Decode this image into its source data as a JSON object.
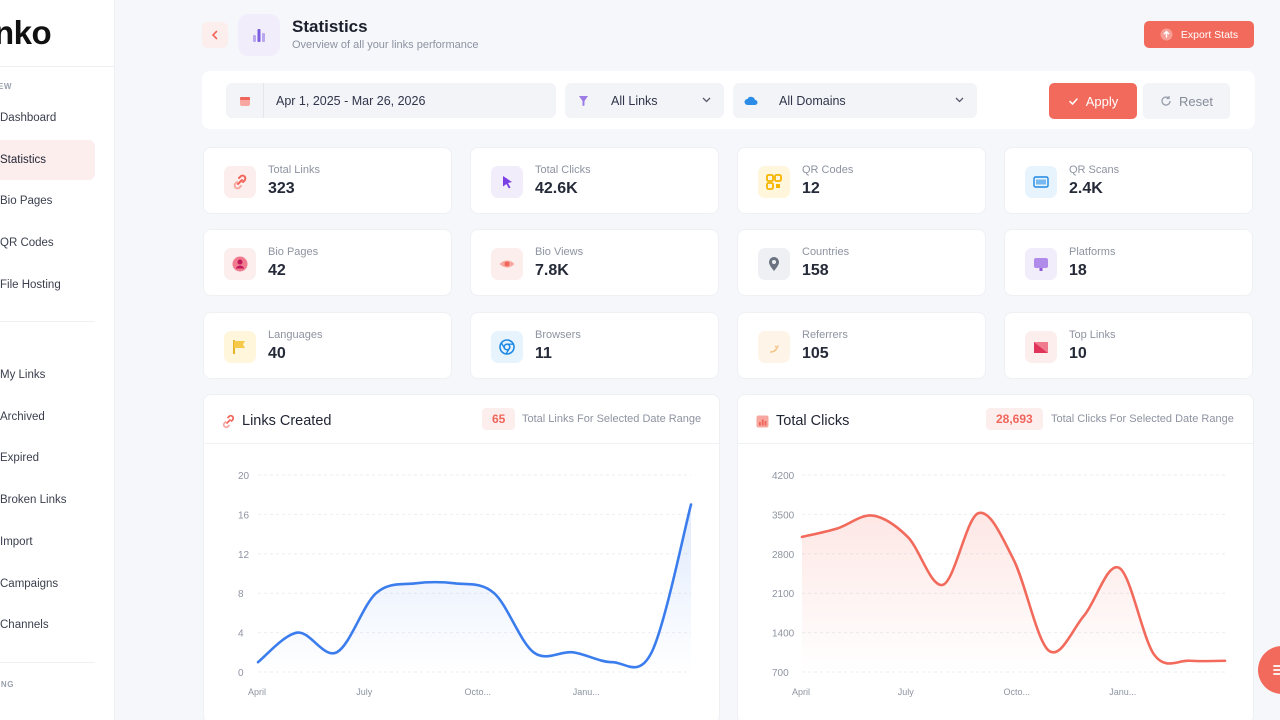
{
  "sidebar": {
    "logo": "nko",
    "section_top": "EW",
    "items_top": [
      {
        "label": "Dashboard"
      },
      {
        "label": "Statistics"
      },
      {
        "label": "Bio Pages"
      },
      {
        "label": "QR Codes"
      },
      {
        "label": "File Hosting"
      }
    ],
    "items_links": [
      {
        "label": "My Links"
      },
      {
        "label": "Archived"
      },
      {
        "label": "Expired"
      },
      {
        "label": "Broken Links"
      },
      {
        "label": "Import"
      },
      {
        "label": "Campaigns"
      },
      {
        "label": "Channels"
      }
    ],
    "section_bottom": "ING"
  },
  "header": {
    "title": "Statistics",
    "subtitle": "Overview of all your links performance",
    "export_label": "Export Stats"
  },
  "filters": {
    "date_range": "Apr 1, 2025 - Mar 26, 2026",
    "links_select": "All Links",
    "domains_select": "All Domains",
    "apply_label": "Apply",
    "reset_label": "Reset"
  },
  "stats": [
    {
      "label": "Total Links",
      "value": "323",
      "icon": "link-icon",
      "color": "#fdeeee"
    },
    {
      "label": "Total Clicks",
      "value": "42.6K",
      "icon": "cursor-icon",
      "color": "#f1edfb"
    },
    {
      "label": "QR Codes",
      "value": "12",
      "icon": "qr-code-icon",
      "color": "#fff6dc"
    },
    {
      "label": "QR Scans",
      "value": "2.4K",
      "icon": "barcode-icon",
      "color": "#e7f4fd"
    },
    {
      "label": "Bio Pages",
      "value": "42",
      "icon": "user-circle-icon",
      "color": "#fdeeee"
    },
    {
      "label": "Bio Views",
      "value": "7.8K",
      "icon": "eye-icon",
      "color": "#fdeeee"
    },
    {
      "label": "Countries",
      "value": "158",
      "icon": "map-pin-icon",
      "color": "#eef0f4"
    },
    {
      "label": "Platforms",
      "value": "18",
      "icon": "monitor-icon",
      "color": "#f1edfb"
    },
    {
      "label": "Languages",
      "value": "40",
      "icon": "flag-icon",
      "color": "#fff6dc"
    },
    {
      "label": "Browsers",
      "value": "11",
      "icon": "chrome-icon",
      "color": "#e7f4fd"
    },
    {
      "label": "Referrers",
      "value": "105",
      "icon": "referrer-icon",
      "color": "#fff4e8"
    },
    {
      "label": "Top Links",
      "value": "10",
      "icon": "top-links-icon",
      "color": "#fdeeee"
    }
  ],
  "charts": {
    "links": {
      "title": "Links Created",
      "badge": "65",
      "desc": "Total Links For Selected Date Range"
    },
    "clicks": {
      "title": "Total Clicks",
      "badge": "28,693",
      "desc": "Total Clicks For Selected Date Range"
    }
  },
  "chart_data": [
    {
      "type": "area",
      "title": "",
      "color": "#3b7ded",
      "x_ticks": [
        "April",
        "July",
        "Octo...",
        "Janu..."
      ],
      "y_ticks": [
        0,
        4,
        8,
        12,
        16,
        20
      ],
      "ylim": [
        0,
        20
      ],
      "x": [
        0,
        1,
        2,
        3,
        4,
        5,
        6,
        7,
        8,
        9,
        10,
        11
      ],
      "values": [
        1,
        4,
        2,
        8,
        9,
        9,
        8,
        2,
        2,
        1,
        2,
        17
      ]
    },
    {
      "type": "area",
      "title": "",
      "color": "#f26a5c",
      "x_ticks": [
        "April",
        "July",
        "Octo...",
        "Janu..."
      ],
      "y_ticks": [
        700,
        1400,
        2100,
        2800,
        3500,
        4200
      ],
      "ylim": [
        700,
        4200
      ],
      "x": [
        0,
        1,
        2,
        3,
        4,
        5,
        6,
        7,
        8,
        9,
        10,
        11,
        12
      ],
      "values": [
        3100,
        3250,
        3480,
        3100,
        2250,
        3520,
        2700,
        1080,
        1700,
        2550,
        1000,
        900,
        900
      ]
    }
  ]
}
